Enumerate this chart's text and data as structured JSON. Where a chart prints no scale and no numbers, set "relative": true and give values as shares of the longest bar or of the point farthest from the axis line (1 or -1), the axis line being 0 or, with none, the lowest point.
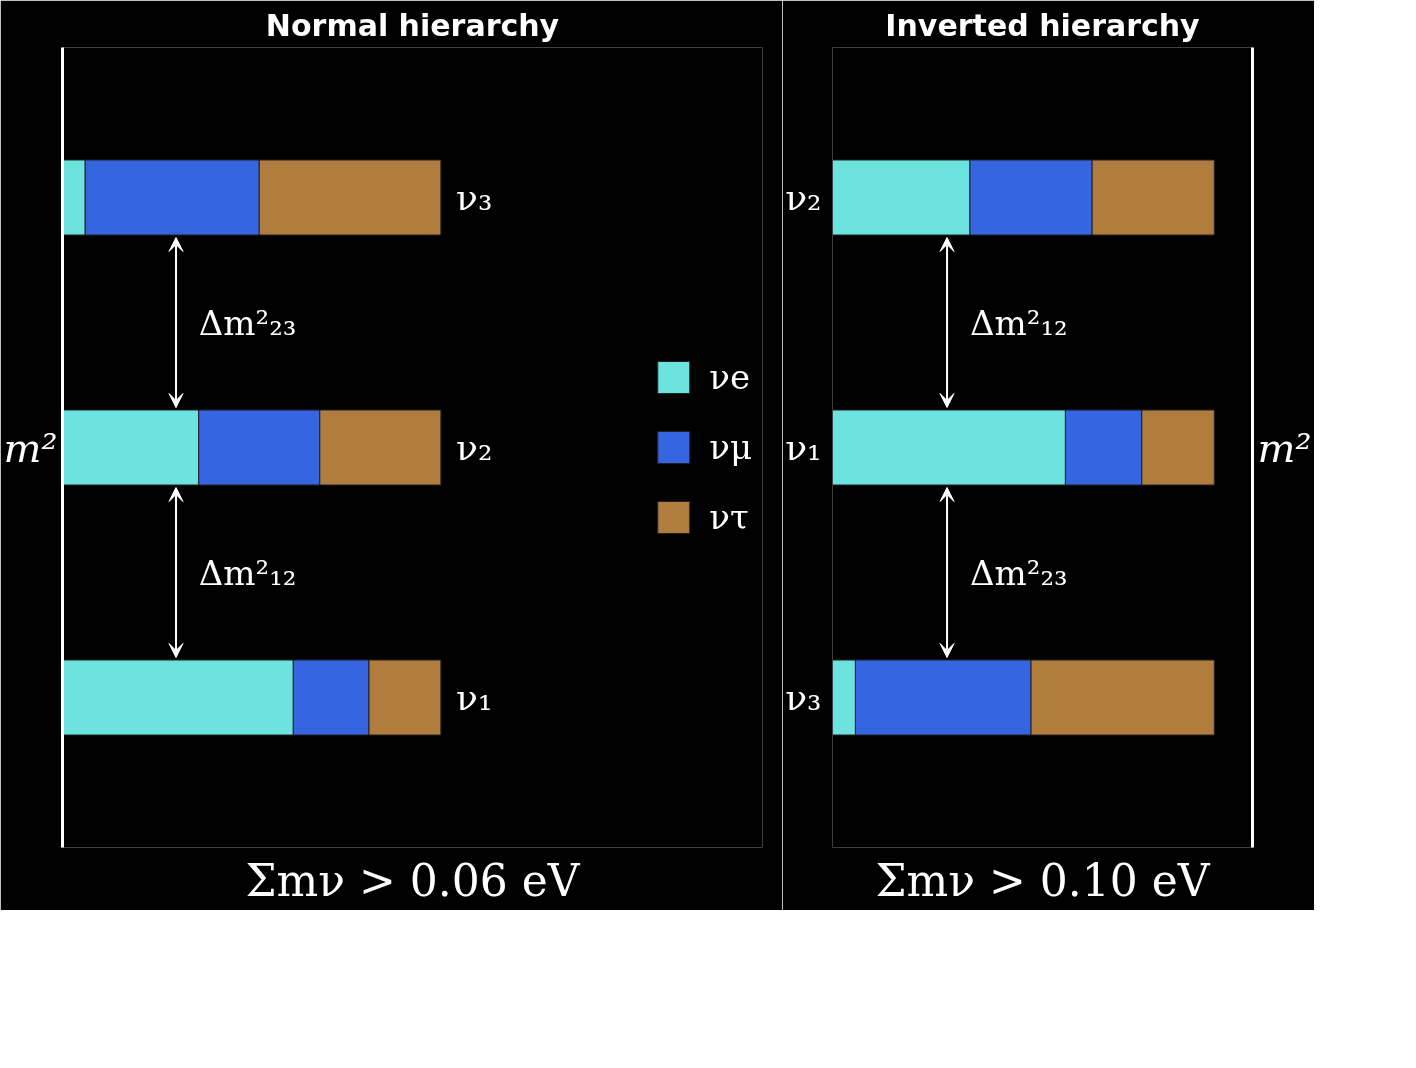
{
  "chart_data": [
    {
      "type": "bar",
      "orientation": "horizontal",
      "stacked": true,
      "relative": true,
      "title": "Normal hierarchy",
      "ylabel": "m²",
      "categories": [
        "ν₃",
        "ν₂",
        "ν₁"
      ],
      "series": [
        {
          "name": "νe",
          "color": "#6de3e0",
          "values": [
            0.06,
            0.36,
            0.61
          ]
        },
        {
          "name": "νμ",
          "color": "#3565e0",
          "values": [
            0.46,
            0.32,
            0.2
          ]
        },
        {
          "name": "ντ",
          "color": "#b07d3e",
          "values": [
            0.48,
            0.32,
            0.19
          ]
        }
      ],
      "annotations": [
        "Δm²₂₃",
        "Δm²₁₂",
        "Σmν > 0.06 eV"
      ],
      "legend": "right",
      "grid": false
    },
    {
      "type": "bar",
      "orientation": "horizontal",
      "stacked": true,
      "relative": true,
      "title": "Inverted hierarchy",
      "ylabel": "m²",
      "categories": [
        "ν₂",
        "ν₁",
        "ν₃"
      ],
      "series": [
        {
          "color": "#6de3e0",
          "values": [
            0.36,
            0.61,
            0.06
          ]
        },
        {
          "color": "#3565e0",
          "values": [
            0.32,
            0.2,
            0.46
          ]
        },
        {
          "color": "#b07d3e",
          "values": [
            0.32,
            0.19,
            0.48
          ]
        }
      ],
      "annotations": [
        "Δm²₁₂",
        "Δm²₂₃",
        "Σmν > 0.10 eV"
      ],
      "legend": false,
      "grid": false
    }
  ]
}
